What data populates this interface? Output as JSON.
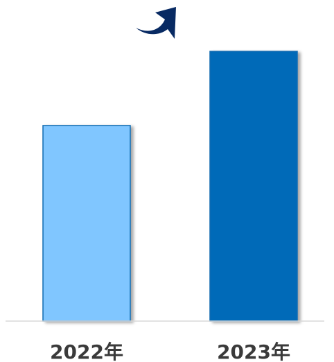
{
  "chart_data": {
    "type": "bar",
    "title": "",
    "xlabel": "",
    "ylabel": "",
    "categories": [
      "2022年",
      "2023年"
    ],
    "series": [
      {
        "values": [
          72.5,
          100
        ]
      }
    ],
    "ylim": [
      0,
      100
    ],
    "grid": false,
    "legend": "none",
    "y_axis_visible": false,
    "bar_colors": [
      "#80C6FF",
      "#006AB8"
    ],
    "bar_edge_color": "#0E6BB0",
    "annotation_icon": "curved-up-arrow-icon",
    "annotation_color": "#082A63",
    "baseline_color": "#D8D8D8",
    "label_color": "#3A3A3A"
  }
}
